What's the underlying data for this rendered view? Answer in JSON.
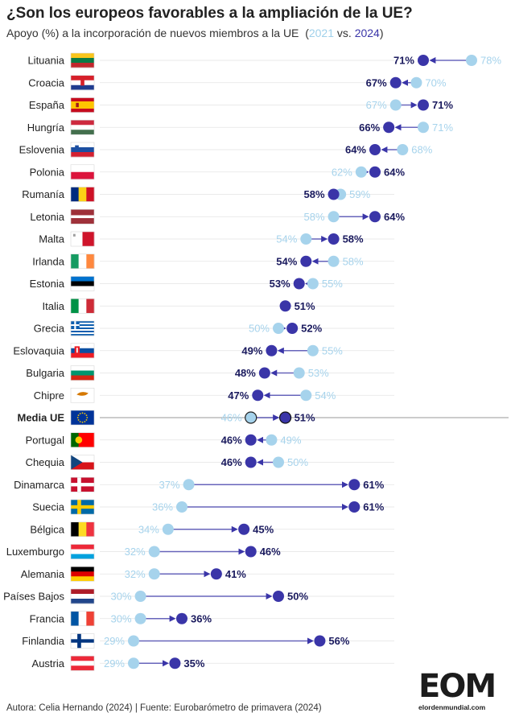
{
  "title": "¿Son los europeos favorables a la ampliación de la UE?",
  "subtitle": {
    "prefix": "Apoyo (%) a la incorporación de nuevos miembros a la UE",
    "open": "(",
    "year_a": "2021",
    "vs": "vs.",
    "year_b": "2024",
    "close": ")"
  },
  "footer": "Autora: Celia Hernando (2024) | Fuente: Eurobarómetro de primavera (2024)",
  "logo": {
    "mark": "EOM",
    "text": "elordenmundial.com"
  },
  "colors": {
    "y2021": "#a6d3ec",
    "y2024": "#3a35a8",
    "label": "#1a1a5e",
    "grid": "#e3e3e3"
  },
  "chart_data": {
    "type": "dumbbell",
    "series": [
      {
        "name": "2021",
        "key": "v2021"
      },
      {
        "name": "2024",
        "key": "v2024"
      }
    ],
    "value_suffix": "%",
    "rows": [
      {
        "country": "Lituania",
        "flag": "lithuania-flag",
        "v2021": 78,
        "v2024": 71
      },
      {
        "country": "Croacia",
        "flag": "croatia-flag",
        "v2021": 70,
        "v2024": 67
      },
      {
        "country": "España",
        "flag": "spain-flag",
        "v2021": 67,
        "v2024": 71
      },
      {
        "country": "Hungría",
        "flag": "hungary-flag",
        "v2021": 71,
        "v2024": 66
      },
      {
        "country": "Eslovenia",
        "flag": "slovenia-flag",
        "v2021": 68,
        "v2024": 64
      },
      {
        "country": "Polonia",
        "flag": "poland-flag",
        "v2021": 62,
        "v2024": 64
      },
      {
        "country": "Rumanía",
        "flag": "romania-flag",
        "v2021": 59,
        "v2024": 58
      },
      {
        "country": "Letonia",
        "flag": "latvia-flag",
        "v2021": 58,
        "v2024": 64
      },
      {
        "country": "Malta",
        "flag": "malta-flag",
        "v2021": 54,
        "v2024": 58
      },
      {
        "country": "Irlanda",
        "flag": "ireland-flag",
        "v2021": 58,
        "v2024": 54
      },
      {
        "country": "Estonia",
        "flag": "estonia-flag",
        "v2021": 55,
        "v2024": 53
      },
      {
        "country": "Italia",
        "flag": "italy-flag",
        "v2021": 51,
        "v2024": 51
      },
      {
        "country": "Grecia",
        "flag": "greece-flag",
        "v2021": 50,
        "v2024": 52
      },
      {
        "country": "Eslovaquia",
        "flag": "slovakia-flag",
        "v2021": 55,
        "v2024": 49
      },
      {
        "country": "Bulgaria",
        "flag": "bulgaria-flag",
        "v2021": 53,
        "v2024": 48
      },
      {
        "country": "Chipre",
        "flag": "cyprus-flag",
        "v2021": 54,
        "v2024": 47
      },
      {
        "country": "Media UE",
        "flag": "eu-flag",
        "v2021": 46,
        "v2024": 51,
        "highlight": true
      },
      {
        "country": "Portugal",
        "flag": "portugal-flag",
        "v2021": 49,
        "v2024": 46
      },
      {
        "country": "Chequia",
        "flag": "czechia-flag",
        "v2021": 50,
        "v2024": 46
      },
      {
        "country": "Dinamarca",
        "flag": "denmark-flag",
        "v2021": 37,
        "v2024": 61
      },
      {
        "country": "Suecia",
        "flag": "sweden-flag",
        "v2021": 36,
        "v2024": 61
      },
      {
        "country": "Bélgica",
        "flag": "belgium-flag",
        "v2021": 34,
        "v2024": 45
      },
      {
        "country": "Luxemburgo",
        "flag": "luxembourg-flag",
        "v2021": 32,
        "v2024": 46
      },
      {
        "country": "Alemania",
        "flag": "germany-flag",
        "v2021": 32,
        "v2024": 41
      },
      {
        "country": "Países Bajos",
        "flag": "netherlands-flag",
        "v2021": 30,
        "v2024": 50
      },
      {
        "country": "Francia",
        "flag": "france-flag",
        "v2021": 30,
        "v2024": 36
      },
      {
        "country": "Finlandia",
        "flag": "finland-flag",
        "v2021": 29,
        "v2024": 56
      },
      {
        "country": "Austria",
        "flag": "austria-flag",
        "v2021": 29,
        "v2024": 35
      }
    ]
  }
}
